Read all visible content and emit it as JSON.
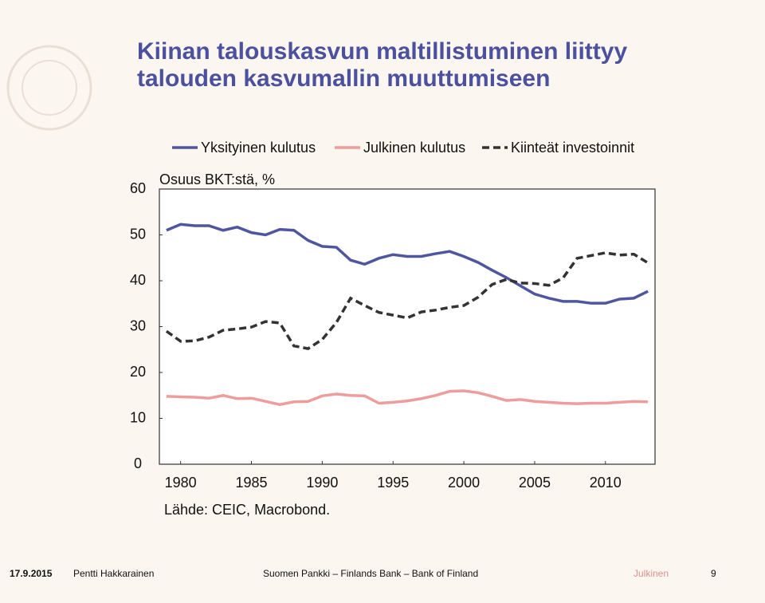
{
  "title": "Kiinan talouskasvun maltillistuminen liittyy talouden kasvumallin muuttumiseen",
  "source": "Lähde: CEIC, Macrobond.",
  "footer": {
    "date": "17.9.2015",
    "author": "Pentti Hakkarainen",
    "organization": "Suomen Pankki – Finlands Bank – Bank of Finland",
    "classification": "Julkinen",
    "page": "9"
  },
  "chart_data": {
    "type": "line",
    "y_label": "Osuus BKT:stä, %",
    "x": [
      1979,
      1980,
      1981,
      1982,
      1983,
      1984,
      1985,
      1986,
      1987,
      1988,
      1989,
      1990,
      1991,
      1992,
      1993,
      1994,
      1995,
      1996,
      1997,
      1998,
      1999,
      2000,
      2001,
      2002,
      2003,
      2004,
      2005,
      2006,
      2007,
      2008,
      2009,
      2010,
      2011,
      2012,
      2013
    ],
    "series": [
      {
        "name": "Yksityinen kulutus",
        "color": "#4f56a0",
        "dash": false,
        "values": [
          51,
          52.3,
          52,
          52,
          51,
          51.7,
          50.5,
          50,
          51.2,
          51,
          48.8,
          47.5,
          47.3,
          44.5,
          43.6,
          44.9,
          45.7,
          45.3,
          45.3,
          45.9,
          46.4,
          45.3,
          44,
          42.3,
          40.7,
          38.9,
          37.1,
          36.2,
          35.5,
          35.5,
          35.1,
          35.1,
          36,
          36.2,
          37.7
        ]
      },
      {
        "name": "Julkinen kulutus",
        "color": "#ee9c9c",
        "dash": false,
        "values": [
          14.8,
          14.7,
          14.6,
          14.4,
          15,
          14.3,
          14.4,
          13.7,
          13,
          13.6,
          13.7,
          14.9,
          15.3,
          15,
          14.9,
          13.3,
          13.5,
          13.8,
          14.3,
          15,
          15.9,
          16,
          15.6,
          14.8,
          13.9,
          14.1,
          13.7,
          13.5,
          13.3,
          13.2,
          13.3,
          13.3,
          13.5,
          13.7,
          13.6
        ]
      },
      {
        "name": "Kiinteät investoinnit",
        "color": "#333333",
        "dash": true,
        "values": [
          29,
          26.8,
          26.9,
          27.7,
          29.2,
          29.5,
          29.9,
          31.1,
          30.8,
          25.8,
          25.2,
          27.2,
          30.9,
          36.2,
          34.6,
          33.1,
          32.5,
          31.9,
          33.2,
          33.6,
          34.2,
          34.6,
          36.4,
          39.2,
          40.3,
          39.5,
          39.4,
          39,
          40.6,
          44.9,
          45.5,
          46.1,
          45.6,
          45.8,
          43.9
        ]
      }
    ],
    "xlim": [
      1978.5,
      2013.5
    ],
    "xticks": [
      1980,
      1985,
      1990,
      1995,
      2000,
      2005,
      2010
    ],
    "ylim": [
      0,
      60
    ],
    "yticks": [
      0,
      10,
      20,
      30,
      40,
      50,
      60
    ],
    "grid": false,
    "legend": "top"
  }
}
